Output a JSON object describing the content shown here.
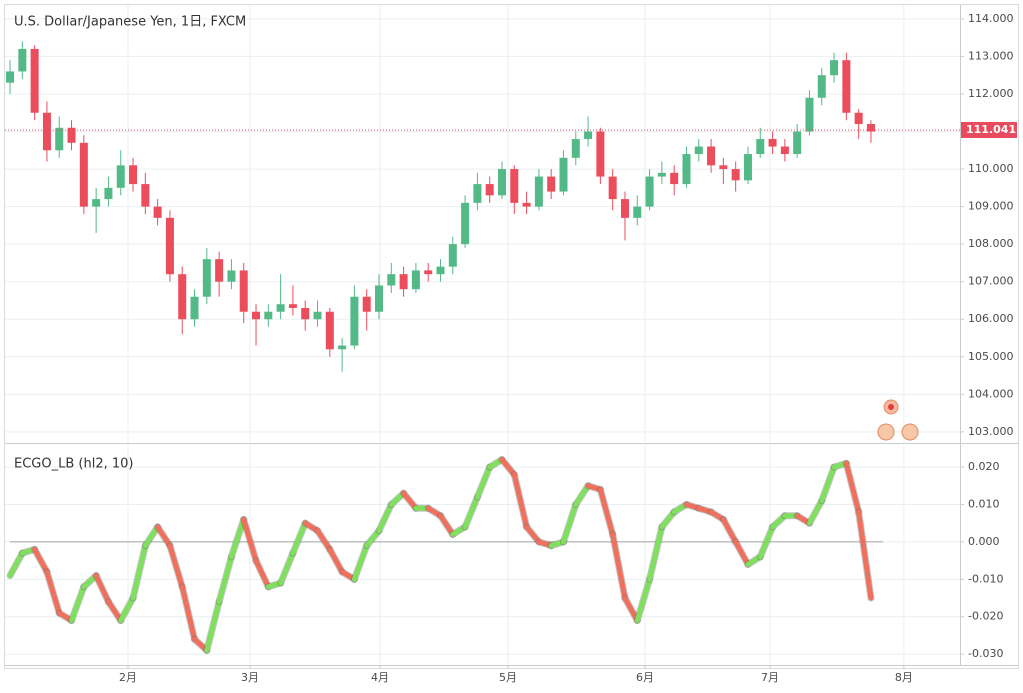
{
  "chart_data": [
    {
      "type": "candlestick",
      "title": "U.S. Dollar/Japanese Yen, 1日, FXCM",
      "up_color": "#53b987",
      "down_color": "#eb4d5c",
      "candles": [
        [
          112.3,
          112.9,
          112.0,
          112.6
        ],
        [
          112.6,
          113.4,
          112.4,
          113.2
        ],
        [
          113.2,
          113.3,
          111.3,
          111.5
        ],
        [
          111.5,
          111.8,
          110.2,
          110.5
        ],
        [
          110.5,
          111.4,
          110.3,
          111.1
        ],
        [
          111.1,
          111.3,
          110.5,
          110.7
        ],
        [
          110.7,
          110.9,
          108.8,
          109.0
        ],
        [
          109.0,
          109.5,
          108.3,
          109.2
        ],
        [
          109.2,
          109.8,
          109.0,
          109.5
        ],
        [
          109.5,
          110.5,
          109.3,
          110.1
        ],
        [
          110.1,
          110.3,
          109.4,
          109.6
        ],
        [
          109.6,
          109.9,
          108.8,
          109.0
        ],
        [
          109.0,
          109.2,
          108.5,
          108.7
        ],
        [
          108.7,
          108.9,
          107.0,
          107.2
        ],
        [
          107.2,
          107.4,
          105.6,
          106.0
        ],
        [
          106.0,
          106.8,
          105.8,
          106.6
        ],
        [
          106.6,
          107.9,
          106.4,
          107.6
        ],
        [
          107.6,
          107.8,
          106.6,
          107.0
        ],
        [
          107.0,
          107.6,
          106.8,
          107.3
        ],
        [
          107.3,
          107.5,
          105.9,
          106.2
        ],
        [
          106.2,
          106.4,
          105.3,
          106.0
        ],
        [
          106.0,
          106.4,
          105.8,
          106.2
        ],
        [
          106.2,
          107.2,
          106.0,
          106.4
        ],
        [
          106.4,
          106.9,
          106.1,
          106.3
        ],
        [
          106.3,
          106.5,
          105.7,
          106.0
        ],
        [
          106.0,
          106.5,
          105.8,
          106.2
        ],
        [
          106.2,
          106.3,
          105.0,
          105.2
        ],
        [
          105.2,
          105.5,
          104.6,
          105.3
        ],
        [
          105.3,
          106.9,
          105.2,
          106.6
        ],
        [
          106.6,
          106.8,
          105.7,
          106.2
        ],
        [
          106.2,
          107.2,
          106.0,
          106.9
        ],
        [
          106.9,
          107.5,
          106.7,
          107.2
        ],
        [
          107.2,
          107.4,
          106.6,
          106.8
        ],
        [
          106.8,
          107.5,
          106.7,
          107.3
        ],
        [
          107.3,
          107.5,
          107.0,
          107.2
        ],
        [
          107.2,
          107.6,
          107.0,
          107.4
        ],
        [
          107.4,
          108.2,
          107.2,
          108.0
        ],
        [
          108.0,
          109.3,
          107.9,
          109.1
        ],
        [
          109.1,
          109.9,
          108.9,
          109.6
        ],
        [
          109.6,
          109.8,
          109.1,
          109.3
        ],
        [
          109.3,
          110.2,
          109.2,
          110.0
        ],
        [
          110.0,
          110.1,
          108.8,
          109.1
        ],
        [
          109.1,
          109.4,
          108.8,
          109.0
        ],
        [
          109.0,
          110.0,
          108.9,
          109.8
        ],
        [
          109.8,
          110.0,
          109.2,
          109.4
        ],
        [
          109.4,
          110.5,
          109.3,
          110.3
        ],
        [
          110.3,
          111.0,
          110.1,
          110.8
        ],
        [
          110.8,
          111.4,
          110.6,
          111.0
        ],
        [
          111.0,
          111.1,
          109.6,
          109.8
        ],
        [
          109.8,
          110.0,
          108.9,
          109.2
        ],
        [
          109.2,
          109.4,
          108.1,
          108.7
        ],
        [
          108.7,
          109.3,
          108.5,
          109.0
        ],
        [
          109.0,
          110.0,
          108.9,
          109.8
        ],
        [
          109.8,
          110.2,
          109.6,
          109.9
        ],
        [
          109.9,
          110.1,
          109.3,
          109.6
        ],
        [
          109.6,
          110.6,
          109.5,
          110.4
        ],
        [
          110.4,
          110.8,
          110.2,
          110.6
        ],
        [
          110.6,
          110.8,
          109.9,
          110.1
        ],
        [
          110.1,
          110.3,
          109.6,
          110.0
        ],
        [
          110.0,
          110.2,
          109.4,
          109.7
        ],
        [
          109.7,
          110.6,
          109.6,
          110.4
        ],
        [
          110.4,
          111.1,
          110.3,
          110.8
        ],
        [
          110.8,
          111.0,
          110.4,
          110.6
        ],
        [
          110.6,
          110.8,
          110.2,
          110.4
        ],
        [
          110.4,
          111.2,
          110.3,
          111.0
        ],
        [
          111.0,
          112.1,
          110.9,
          111.9
        ],
        [
          111.9,
          112.7,
          111.7,
          112.5
        ],
        [
          112.5,
          113.1,
          112.3,
          112.9
        ],
        [
          112.9,
          113.1,
          111.3,
          111.5
        ],
        [
          111.5,
          111.6,
          110.8,
          111.2
        ],
        [
          111.2,
          111.3,
          110.7,
          111.0
        ]
      ],
      "last_price": 111.041,
      "last_price_color": "#e84b5d",
      "xlim": [
        -0.41,
        77.24
      ],
      "ylim": [
        102.73,
        114.37
      ],
      "xticks": [
        9.59,
        19.51,
        30.08,
        40.49,
        51.63,
        61.79,
        72.68
      ],
      "yticks": [
        {
          "value": 114,
          "label": "114.000"
        },
        {
          "value": 113,
          "label": "113.000"
        },
        {
          "value": 112,
          "label": "112.000"
        },
        {
          "value": 111,
          "label": "111.000"
        },
        {
          "value": 110,
          "label": "110.000"
        },
        {
          "value": 109,
          "label": "109.000"
        },
        {
          "value": 108,
          "label": "108.000"
        },
        {
          "value": 107,
          "label": "107.000"
        },
        {
          "value": 106,
          "label": "106.000"
        },
        {
          "value": 105,
          "label": "105.000"
        },
        {
          "value": 104,
          "label": "104.000"
        },
        {
          "value": 103,
          "label": "103.000"
        }
      ],
      "grid": true
    },
    {
      "type": "oscillator",
      "title": "ECGO_LB (hl2, 10)",
      "rising_color": "#7ee05c",
      "falling_color": "#f0705e",
      "values": [
        -0.009,
        -0.003,
        -0.002,
        -0.008,
        -0.019,
        -0.021,
        -0.012,
        -0.009,
        -0.016,
        -0.021,
        -0.015,
        -0.001,
        0.004,
        -0.001,
        -0.012,
        -0.026,
        -0.029,
        -0.016,
        -0.004,
        0.006,
        -0.005,
        -0.012,
        -0.011,
        -0.003,
        0.005,
        0.003,
        -0.002,
        -0.008,
        -0.01,
        -0.001,
        0.003,
        0.01,
        0.013,
        0.009,
        0.009,
        0.007,
        0.002,
        0.004,
        0.012,
        0.02,
        0.022,
        0.018,
        0.004,
        0.0,
        -0.001,
        0.0,
        0.01,
        0.015,
        0.014,
        0.002,
        -0.015,
        -0.021,
        -0.01,
        0.004,
        0.008,
        0.01,
        0.009,
        0.008,
        0.006,
        0.0,
        -0.006,
        -0.004,
        0.004,
        0.007,
        0.007,
        0.005,
        0.011,
        0.02,
        0.021,
        0.008,
        -0.015
      ],
      "zero_line": 0,
      "xlim": [
        -0.41,
        77.24
      ],
      "ylim": [
        -0.0329,
        0.0259
      ],
      "xticks": [
        {
          "value": 9.59,
          "label": "2月"
        },
        {
          "value": 19.51,
          "label": "3月"
        },
        {
          "value": 30.08,
          "label": "4月"
        },
        {
          "value": 40.49,
          "label": "5月"
        },
        {
          "value": 51.63,
          "label": "6月"
        },
        {
          "value": 61.79,
          "label": "7月"
        },
        {
          "value": 72.68,
          "label": "8月"
        }
      ],
      "yticks": [
        {
          "value": 0.02,
          "label": "0.020"
        },
        {
          "value": 0.01,
          "label": "0.010"
        },
        {
          "value": 0,
          "label": "0.000"
        },
        {
          "value": -0.01,
          "label": "-0.010"
        },
        {
          "value": -0.02,
          "label": "-0.020"
        },
        {
          "value": -0.03,
          "label": "-0.030"
        }
      ],
      "grid": true
    }
  ]
}
